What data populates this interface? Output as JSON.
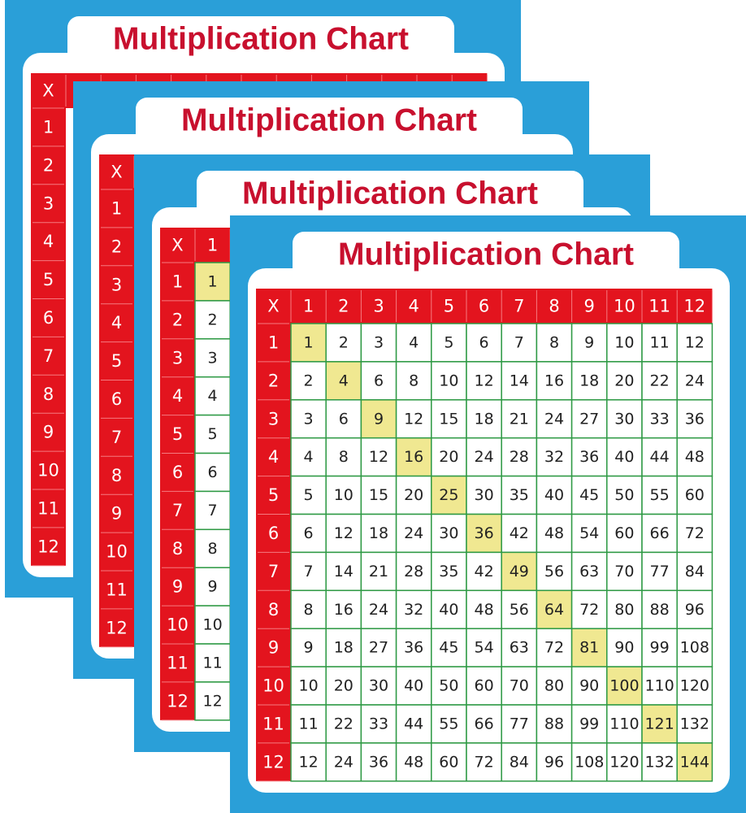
{
  "cards": [
    {
      "title": "Multiplication Chart",
      "corner": "X",
      "row_headers": [
        "1",
        "2",
        "3",
        "4",
        "5",
        "6",
        "7",
        "8",
        "9",
        "10",
        "11",
        "12"
      ]
    },
    {
      "title": "Multiplication Chart",
      "corner": "X",
      "row_headers": [
        "1",
        "2",
        "3",
        "4",
        "5",
        "6",
        "7",
        "8",
        "9",
        "10",
        "11",
        "12"
      ]
    },
    {
      "title": "Multiplication Chart",
      "corner": "X",
      "col_headers": [
        "1"
      ],
      "row_headers": [
        "1",
        "2",
        "3",
        "4",
        "5",
        "6",
        "7",
        "8",
        "9",
        "10",
        "11",
        "12"
      ],
      "cells": [
        [
          "1"
        ],
        [
          "2"
        ],
        [
          "3"
        ],
        [
          "4"
        ],
        [
          "5"
        ],
        [
          "6"
        ],
        [
          "7"
        ],
        [
          "8"
        ],
        [
          "9"
        ],
        [
          "10"
        ],
        [
          "11"
        ],
        [
          "12"
        ]
      ]
    },
    {
      "title": "Multiplication Chart",
      "corner": "X",
      "col_headers": [
        "1",
        "2",
        "3",
        "4",
        "5",
        "6",
        "7",
        "8",
        "9",
        "10",
        "11",
        "12"
      ],
      "row_headers": [
        "1",
        "2",
        "3",
        "4",
        "5",
        "6",
        "7",
        "8",
        "9",
        "10",
        "11",
        "12"
      ],
      "cells": [
        [
          "1",
          "2",
          "3",
          "4",
          "5",
          "6",
          "7",
          "8",
          "9",
          "10",
          "11",
          "12"
        ],
        [
          "2",
          "4",
          "6",
          "8",
          "10",
          "12",
          "14",
          "16",
          "18",
          "20",
          "22",
          "24"
        ],
        [
          "3",
          "6",
          "9",
          "12",
          "15",
          "18",
          "21",
          "24",
          "27",
          "30",
          "33",
          "36"
        ],
        [
          "4",
          "8",
          "12",
          "16",
          "20",
          "24",
          "28",
          "32",
          "36",
          "40",
          "44",
          "48"
        ],
        [
          "5",
          "10",
          "15",
          "20",
          "25",
          "30",
          "35",
          "40",
          "45",
          "50",
          "55",
          "60"
        ],
        [
          "6",
          "12",
          "18",
          "24",
          "30",
          "36",
          "42",
          "48",
          "54",
          "60",
          "66",
          "72"
        ],
        [
          "7",
          "14",
          "21",
          "28",
          "35",
          "42",
          "49",
          "56",
          "63",
          "70",
          "77",
          "84"
        ],
        [
          "8",
          "16",
          "24",
          "32",
          "40",
          "48",
          "56",
          "64",
          "72",
          "80",
          "88",
          "96"
        ],
        [
          "9",
          "18",
          "27",
          "36",
          "45",
          "54",
          "63",
          "72",
          "81",
          "90",
          "99",
          "108"
        ],
        [
          "10",
          "20",
          "30",
          "40",
          "50",
          "60",
          "70",
          "80",
          "90",
          "100",
          "110",
          "120"
        ],
        [
          "11",
          "22",
          "33",
          "44",
          "55",
          "66",
          "77",
          "88",
          "99",
          "110",
          "121",
          "132"
        ],
        [
          "12",
          "24",
          "36",
          "48",
          "60",
          "72",
          "84",
          "96",
          "108",
          "120",
          "132",
          "144"
        ]
      ]
    }
  ]
}
